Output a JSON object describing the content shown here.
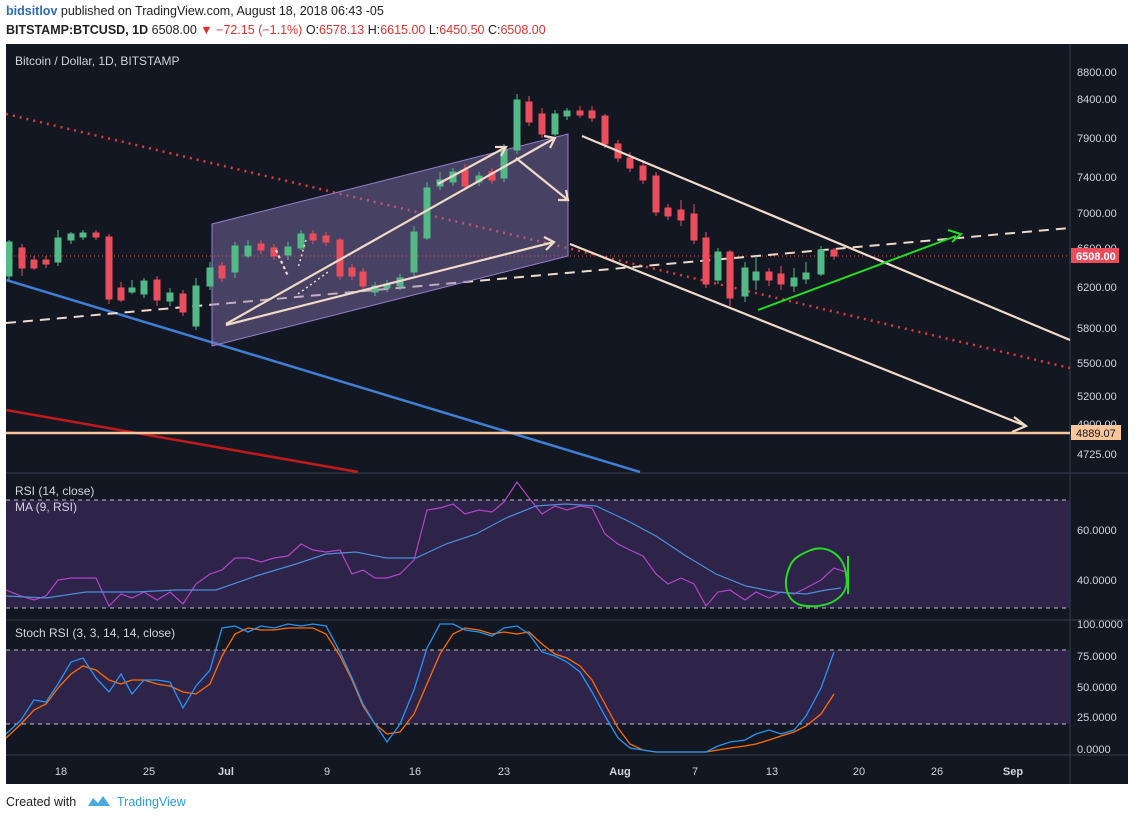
{
  "header": {
    "author": "bidsitlov",
    "published": "published on TradingView.com, August 18, 2018 06:43 -05",
    "symbol": "BITSTAMP:BTCUSD, 1D",
    "last": "6508.00",
    "change": "−72.15 (−1.1%)",
    "o_label": "O:",
    "o_value": "6578.13",
    "h_label": "H:",
    "h_value": "6615.00",
    "l_label": "L:",
    "l_value": "6450.50",
    "c_label": "C:",
    "c_value": "6508.00"
  },
  "chart": {
    "title": "Bitcoin / Dollar, 1D, BITSTAMP",
    "price_axis": [
      "8800.00",
      "8400.00",
      "7900.00",
      "7400.00",
      "7000.00",
      "6600.00",
      "6200.00",
      "5800.00",
      "5500.00",
      "5200.00",
      "4900.00",
      "4725.00"
    ],
    "current_price_tag": "6508.00",
    "support_price_tag": "4889.07",
    "rsi_title": "RSI (14, close)",
    "rsi_ma_title": "MA (9, RSI)",
    "rsi_axis": [
      "60.0000",
      "40.0000"
    ],
    "stoch_title": "Stoch RSI (3, 3, 14, 14, close)",
    "stoch_axis": [
      "100.0000",
      "75.0000",
      "50.0000",
      "25.0000",
      "0.0000"
    ],
    "time_axis": [
      "18",
      "25",
      "Jul",
      "9",
      "16",
      "23",
      "Aug",
      "7",
      "13",
      "20",
      "26",
      "Sep"
    ]
  },
  "footer": {
    "created_with": "Created with",
    "brand": "TradingView"
  },
  "colors": {
    "background": "#131722",
    "up": "#53b987",
    "down": "#eb4d5c",
    "channel": "#f0d9c8",
    "trend_blue": "#3f7fd6",
    "trend_red": "#c21919",
    "rsi_line": "#b445c8",
    "rsi_ma": "#4a90d9",
    "stoch_k": "#2196f3",
    "stoch_d": "#ff6d00",
    "highlight_green": "#22dd22"
  }
}
